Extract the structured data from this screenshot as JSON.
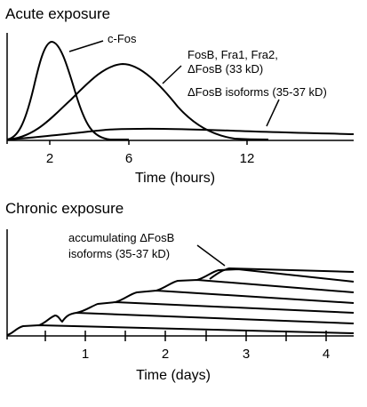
{
  "acute": {
    "title": "Acute exposure",
    "labels": {
      "cfos": "c-Fos",
      "fosb_line1": "FosB, Fra1, Fra2,",
      "fosb_line2": "ΔFosB (33 kD)",
      "isoforms": "ΔFosB isoforms (35-37 kD)"
    },
    "ticks": [
      "2",
      "6",
      "12"
    ],
    "xlabel": "Time (hours)"
  },
  "chronic": {
    "title": "Chronic exposure",
    "labels": {
      "accum_line1": "accumulating ΔFosB",
      "accum_line2": "isoforms (35-37 kD)"
    },
    "ticks": [
      "1",
      "2",
      "3",
      "4"
    ],
    "xlabel": "Time (days)"
  }
}
